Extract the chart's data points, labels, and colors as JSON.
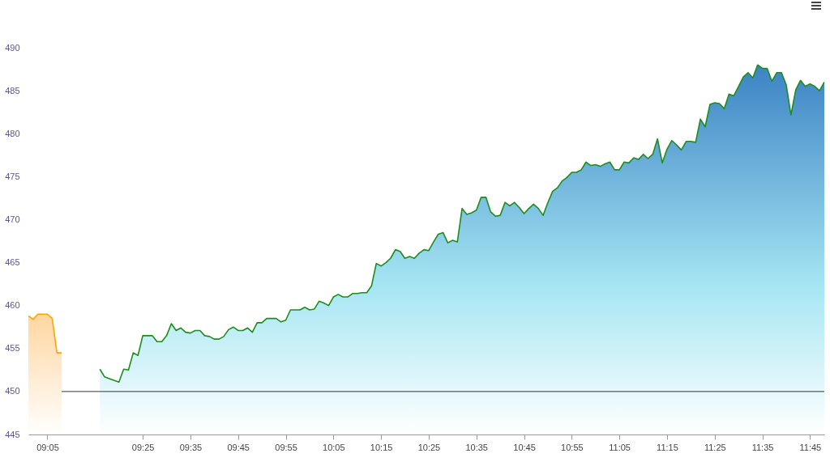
{
  "chart_data": {
    "type": "area",
    "xlim": [
      9.0167,
      11.8
    ],
    "ylim": [
      445,
      490
    ],
    "xticks": [
      {
        "value": 9.0833,
        "label": "09:05"
      },
      {
        "value": 9.4167,
        "label": "09:25"
      },
      {
        "value": 9.5833,
        "label": "09:35"
      },
      {
        "value": 9.75,
        "label": "09:45"
      },
      {
        "value": 9.9167,
        "label": "09:55"
      },
      {
        "value": 10.0833,
        "label": "10:05"
      },
      {
        "value": 10.25,
        "label": "10:15"
      },
      {
        "value": 10.4167,
        "label": "10:25"
      },
      {
        "value": 10.5833,
        "label": "10:35"
      },
      {
        "value": 10.75,
        "label": "10:45"
      },
      {
        "value": 10.9167,
        "label": "10:55"
      },
      {
        "value": 11.0833,
        "label": "11:05"
      },
      {
        "value": 11.25,
        "label": "11:15"
      },
      {
        "value": 11.4167,
        "label": "11:25"
      },
      {
        "value": 11.5833,
        "label": "11:35"
      },
      {
        "value": 11.75,
        "label": "11:45"
      }
    ],
    "yticks": [
      445,
      450,
      455,
      460,
      465,
      470,
      475,
      480,
      485,
      490
    ],
    "grid": false,
    "ref_lines": [
      {
        "axis": "y",
        "value": 450,
        "color": "#333333"
      }
    ],
    "series": [
      {
        "color": "#ffa500",
        "x": [
          9.0167,
          9.0333,
          9.05,
          9.0667,
          9.0833,
          9.1,
          9.1167,
          9.1333
        ],
        "values": [
          458.8,
          458.4,
          459.0,
          459.0,
          459.0,
          458.5,
          454.5,
          454.5
        ]
      },
      {
        "color": "#1e8c1e",
        "x": [
          9.2667,
          9.2833,
          9.3,
          9.3333,
          9.35,
          9.3667,
          9.3833,
          9.4,
          9.4167,
          9.45,
          9.4667,
          9.4833,
          9.5,
          9.5167,
          9.5333,
          9.55,
          9.5667,
          9.5833,
          9.6,
          9.6167,
          9.6333,
          9.65,
          9.6667,
          9.6833,
          9.7,
          9.7167,
          9.7333,
          9.75,
          9.7667,
          9.7833,
          9.8,
          9.8167,
          9.8333,
          9.85,
          9.8833,
          9.9,
          9.9167,
          9.9333,
          9.9667,
          9.9833,
          10.0,
          10.0167,
          10.0333,
          10.05,
          10.0667,
          10.0833,
          10.1,
          10.1167,
          10.1333,
          10.15,
          10.1667,
          10.1833,
          10.2,
          10.2167,
          10.2333,
          10.25,
          10.2667,
          10.2833,
          10.3,
          10.3167,
          10.3333,
          10.35,
          10.3667,
          10.3833,
          10.4,
          10.4167,
          10.4333,
          10.45,
          10.4667,
          10.4833,
          10.5,
          10.5167,
          10.5333,
          10.55,
          10.5667,
          10.5833,
          10.6,
          10.6167,
          10.6333,
          10.65,
          10.6667,
          10.6833,
          10.7,
          10.7167,
          10.7333,
          10.75,
          10.7667,
          10.7833,
          10.8,
          10.8167,
          10.8333,
          10.85,
          10.8667,
          10.8833,
          10.9,
          10.9167,
          10.9333,
          10.95,
          10.9667,
          10.9833,
          11.0,
          11.0167,
          11.0333,
          11.05,
          11.0667,
          11.0833,
          11.1,
          11.1167,
          11.1333,
          11.15,
          11.1667,
          11.1833,
          11.2,
          11.2167,
          11.2333,
          11.25,
          11.2667,
          11.2833,
          11.3,
          11.3167,
          11.3333,
          11.35,
          11.3667,
          11.3833,
          11.4,
          11.4167,
          11.4333,
          11.45,
          11.4667,
          11.4833,
          11.5,
          11.5167,
          11.5333,
          11.55,
          11.5667,
          11.5833,
          11.6,
          11.6167,
          11.6333,
          11.65,
          11.6667,
          11.6833,
          11.7,
          11.7167,
          11.7333,
          11.75,
          11.7667,
          11.7833,
          11.8
        ],
        "values": [
          452.6,
          451.7,
          451.5,
          451.1,
          452.6,
          452.5,
          454.5,
          454.2,
          456.5,
          456.5,
          455.8,
          455.8,
          456.5,
          457.9,
          457.1,
          457.4,
          456.9,
          456.8,
          457.1,
          457.1,
          456.5,
          456.4,
          456.1,
          456.1,
          456.4,
          457.2,
          457.5,
          457.1,
          457.1,
          457.4,
          456.9,
          458.0,
          458.0,
          458.5,
          458.5,
          458.1,
          458.3,
          459.5,
          459.5,
          459.8,
          459.5,
          459.6,
          460.5,
          460.3,
          460.0,
          461.0,
          461.3,
          461.0,
          461.0,
          461.4,
          461.4,
          461.5,
          461.5,
          462.3,
          464.9,
          464.6,
          465.0,
          465.5,
          466.5,
          466.3,
          465.5,
          465.7,
          465.5,
          466.1,
          466.5,
          466.4,
          467.4,
          468.3,
          468.5,
          467.3,
          467.6,
          467.4,
          471.3,
          470.6,
          470.8,
          471.1,
          472.6,
          472.6,
          470.9,
          470.4,
          470.5,
          472.0,
          471.6,
          472.0,
          471.4,
          470.7,
          471.3,
          471.8,
          471.3,
          470.5,
          472.0,
          473.3,
          473.7,
          474.5,
          474.9,
          475.5,
          475.5,
          475.8,
          476.7,
          476.3,
          476.4,
          476.2,
          476.5,
          476.7,
          475.8,
          475.8,
          476.7,
          476.6,
          477.2,
          477.0,
          477.6,
          477.1,
          477.6,
          479.4,
          476.6,
          478.2,
          479.2,
          478.7,
          478.1,
          479.1,
          479.1,
          479.0,
          481.7,
          480.8,
          483.4,
          483.6,
          483.5,
          482.9,
          484.6,
          484.4,
          485.5,
          486.6,
          487.1,
          486.5,
          488.0,
          487.6,
          487.6,
          486.1,
          487.1,
          487.1,
          485.7,
          482.2,
          485.1,
          486.2,
          485.5,
          485.8,
          485.5,
          485.0,
          486.0
        ]
      }
    ]
  }
}
